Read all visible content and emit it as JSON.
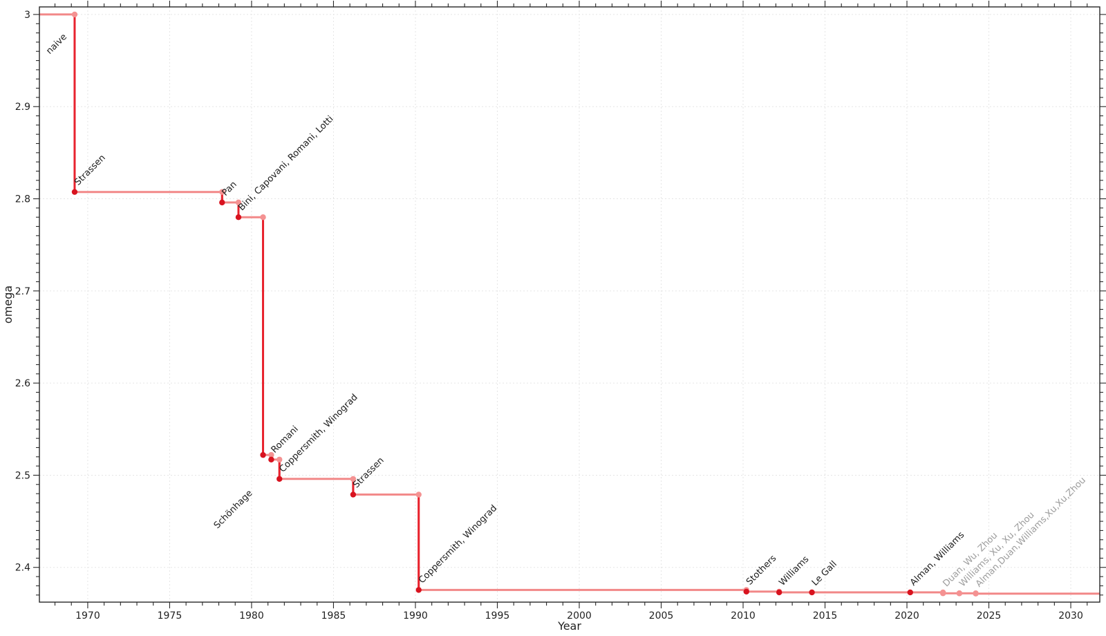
{
  "page": {
    "background": "#ffffff"
  },
  "chart_data": {
    "type": "line",
    "subtype": "step-post-with-vertical-drops",
    "title": "",
    "xlabel": "Year",
    "ylabel": "omega",
    "xlim": [
      1967.05,
      2031.77
    ],
    "ylim": [
      2.3623,
      3.0082
    ],
    "grid": "major-dotted",
    "legend": "none",
    "x_major_ticks": [
      1970,
      1975,
      1980,
      1985,
      1990,
      1995,
      2000,
      2005,
      2010,
      2015,
      2020,
      2025,
      2030
    ],
    "x_minor_tick_step": 1,
    "y_major_ticks": [
      {
        "value": 2.4,
        "label": "2.4"
      },
      {
        "value": 2.5,
        "label": "2.5"
      },
      {
        "value": 2.6,
        "label": "2.6"
      },
      {
        "value": 2.7,
        "label": "2.7"
      },
      {
        "value": 2.8,
        "label": "2.8"
      },
      {
        "value": 2.9,
        "label": "2.9"
      },
      {
        "value": 3.0,
        "label": "3"
      }
    ],
    "y_minor_tick_step": 0.01,
    "start": {
      "label": "naive",
      "omega": 3.0,
      "label_color": "black",
      "label_dx": -36,
      "label_dy": 58
    },
    "points": [
      {
        "label": "Strassen",
        "year": 1969.2,
        "omega": 2.8074,
        "marker": "dark",
        "label_color": "black"
      },
      {
        "label": "Pan",
        "year": 1978.2,
        "omega": 2.796,
        "marker": "dark",
        "label_color": "black"
      },
      {
        "label": "Bini, Capovani, Romani, Lotti",
        "year": 1979.2,
        "omega": 2.78,
        "marker": "dark",
        "label_color": "black"
      },
      {
        "label": "Schönhage",
        "year": 1980.7,
        "omega": 2.522,
        "marker": "dark",
        "label_color": "black",
        "label_dx": -66,
        "label_dy": 107
      },
      {
        "label": "Romani",
        "year": 1981.2,
        "omega": 2.517,
        "marker": "dark",
        "label_color": "black"
      },
      {
        "label": "Coppersmith, Winograd",
        "year": 1981.7,
        "omega": 2.496,
        "marker": "dark",
        "label_color": "black"
      },
      {
        "label": "Strassen",
        "year": 1986.2,
        "omega": 2.479,
        "marker": "dark",
        "label_color": "black"
      },
      {
        "label": "Coppersmith, Winograd",
        "year": 1990.2,
        "omega": 2.3755,
        "marker": "dark",
        "label_color": "black"
      },
      {
        "label": "Stothers",
        "year": 2010.2,
        "omega": 2.3737,
        "marker": "dark",
        "label_color": "black"
      },
      {
        "label": "Williams",
        "year": 2012.2,
        "omega": 2.3729,
        "marker": "dark",
        "label_color": "black"
      },
      {
        "label": "Le Gall",
        "year": 2014.2,
        "omega": 2.3728639,
        "marker": "dark",
        "label_color": "black"
      },
      {
        "label": "Alman, Williams",
        "year": 2020.2,
        "omega": 2.3728596,
        "marker": "dark",
        "label_color": "black"
      },
      {
        "label": "Duan, Wu, Zhou",
        "year": 2022.2,
        "omega": 2.37188,
        "marker": "light",
        "label_color": "grey"
      },
      {
        "label": "Williams, Xu, Xu, Zhou",
        "year": 2023.2,
        "omega": 2.371866,
        "marker": "light",
        "label_color": "grey"
      },
      {
        "label": "Alman,Duan,Williams,Xu,Xu,Zhou",
        "year": 2024.2,
        "omega": 2.371552,
        "marker": "light",
        "label_color": "grey"
      }
    ],
    "line_extends_to_right_edge": true
  },
  "colors": {
    "step_line": "#f28888",
    "drop_line": "#e8232e",
    "dark_marker": "#d8131f",
    "light_marker": "#f49292",
    "grid": "#e5e5e5",
    "axis": "#262626",
    "tick_label": "#1f1f1f",
    "label_black": "#1c1c1c",
    "label_grey": "#9d9d9d"
  }
}
